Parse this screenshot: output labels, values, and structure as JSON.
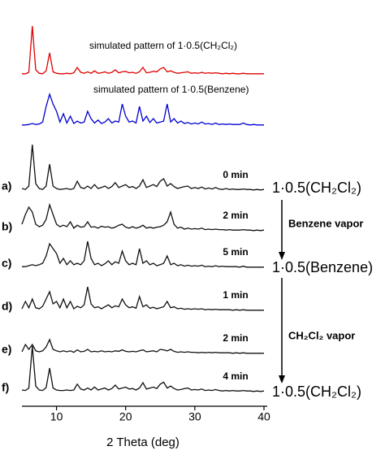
{
  "chart_data": {
    "type": "line",
    "x_label": "2 Theta (deg)",
    "xlim": [
      5,
      40
    ],
    "xticks": [
      10,
      20,
      30,
      40
    ],
    "x": [
      5,
      5.5,
      6,
      6.5,
      7,
      7.5,
      8,
      8.5,
      9,
      9.5,
      10,
      10.5,
      11,
      11.5,
      12,
      12.5,
      13,
      13.5,
      14,
      14.5,
      15,
      15.5,
      16,
      16.5,
      17,
      17.5,
      18,
      18.5,
      19,
      19.5,
      20,
      20.5,
      21,
      21.5,
      22,
      22.5,
      23,
      23.5,
      24,
      24.5,
      25,
      25.5,
      26,
      26.5,
      27,
      27.5,
      28,
      28.5,
      29,
      29.5,
      30,
      30.5,
      31,
      31.5,
      32,
      32.5,
      33,
      33.5,
      34,
      34.5,
      35,
      35.5,
      36,
      36.5,
      37,
      37.5,
      38,
      38.5,
      39,
      39.5,
      40
    ],
    "series": [
      {
        "name": "simulated pattern of 1·0.5(CH₂Cl₂)",
        "color": "#e00000",
        "values": [
          2,
          2,
          5,
          100,
          10,
          3,
          2,
          8,
          45,
          6,
          3,
          2,
          2,
          3,
          2,
          4,
          15,
          5,
          3,
          6,
          3,
          8,
          3,
          4,
          6,
          3,
          5,
          10,
          4,
          6,
          7,
          4,
          5,
          3,
          6,
          15,
          4,
          5,
          7,
          6,
          12,
          15,
          6,
          8,
          5,
          3,
          4,
          5,
          6,
          3,
          4,
          3,
          5,
          3,
          4,
          3,
          4,
          3,
          2,
          3,
          2,
          3,
          2,
          2,
          3,
          2,
          2,
          2,
          2,
          2,
          2
        ]
      },
      {
        "name": "simulated pattern of 1·0.5(Benzene)",
        "color": "#0000d0",
        "values": [
          2,
          2,
          3,
          5,
          3,
          4,
          8,
          40,
          65,
          45,
          30,
          8,
          25,
          6,
          20,
          5,
          10,
          6,
          8,
          30,
          15,
          6,
          12,
          5,
          8,
          15,
          6,
          10,
          8,
          45,
          20,
          8,
          10,
          6,
          40,
          10,
          20,
          7,
          15,
          6,
          8,
          10,
          45,
          8,
          15,
          6,
          10,
          5,
          7,
          4,
          6,
          4,
          8,
          4,
          5,
          3,
          6,
          3,
          4,
          3,
          4,
          3,
          3,
          3,
          6,
          3,
          2,
          3,
          2,
          2,
          2
        ]
      },
      {
        "name": "a)",
        "time": "0 min",
        "time_color": "#1a1aa8",
        "color": "#111111",
        "values": [
          10,
          8,
          15,
          100,
          20,
          10,
          8,
          15,
          60,
          15,
          10,
          8,
          9,
          10,
          8,
          10,
          25,
          12,
          10,
          15,
          10,
          18,
          10,
          12,
          15,
          10,
          14,
          22,
          12,
          15,
          18,
          12,
          14,
          10,
          15,
          28,
          12,
          15,
          18,
          14,
          25,
          30,
          15,
          20,
          14,
          10,
          12,
          14,
          15,
          10,
          12,
          10,
          13,
          9,
          11,
          9,
          12,
          9,
          8,
          10,
          8,
          9,
          8,
          8,
          9,
          8,
          8,
          7,
          8,
          7,
          8
        ]
      },
      {
        "name": "b)",
        "time": "2 min",
        "time_color": "#1a1aa8",
        "color": "#111111",
        "values": [
          20,
          40,
          55,
          45,
          20,
          15,
          18,
          30,
          60,
          40,
          20,
          15,
          18,
          15,
          25,
          12,
          18,
          14,
          15,
          25,
          14,
          15,
          12,
          16,
          14,
          15,
          12,
          14,
          18,
          20,
          14,
          12,
          15,
          12,
          14,
          18,
          12,
          14,
          12,
          14,
          15,
          18,
          25,
          45,
          20,
          12,
          14,
          10,
          12,
          10,
          11,
          10,
          12,
          9,
          10,
          9,
          10,
          9,
          9,
          8,
          9,
          8,
          8,
          8,
          9,
          8,
          8,
          7,
          8,
          7,
          8
        ]
      },
      {
        "name": "c)",
        "time": "5 min",
        "time_color": "#1a1aa8",
        "color": "#111111",
        "values": [
          8,
          8,
          10,
          12,
          10,
          12,
          15,
          30,
          55,
          45,
          35,
          15,
          25,
          12,
          20,
          12,
          15,
          12,
          20,
          60,
          25,
          12,
          15,
          10,
          14,
          20,
          12,
          18,
          15,
          40,
          20,
          12,
          15,
          12,
          45,
          15,
          20,
          12,
          15,
          10,
          12,
          15,
          30,
          12,
          15,
          10,
          12,
          9,
          11,
          9,
          10,
          9,
          11,
          8,
          9,
          8,
          10,
          8,
          9,
          8,
          8,
          8,
          8,
          7,
          9,
          7,
          7,
          7,
          7,
          7,
          7
        ]
      },
      {
        "name": "d)",
        "time": "1 min",
        "time_color": "#d01010",
        "color": "#111111",
        "values": [
          10,
          25,
          12,
          30,
          12,
          10,
          15,
          30,
          45,
          20,
          25,
          12,
          30,
          12,
          25,
          10,
          15,
          12,
          18,
          55,
          20,
          12,
          14,
          10,
          14,
          18,
          12,
          16,
          14,
          30,
          18,
          12,
          14,
          11,
          35,
          14,
          18,
          11,
          13,
          10,
          12,
          14,
          25,
          12,
          14,
          10,
          11,
          9,
          10,
          9,
          10,
          9,
          10,
          8,
          9,
          8,
          9,
          8,
          8,
          8,
          8,
          7,
          8,
          7,
          8,
          7,
          7,
          7,
          7,
          7,
          7
        ]
      },
      {
        "name": "e)",
        "time": "2 min",
        "time_color": "#d01010",
        "color": "#111111",
        "values": [
          10,
          25,
          15,
          25,
          12,
          10,
          12,
          20,
          35,
          15,
          12,
          10,
          12,
          10,
          12,
          9,
          14,
          10,
          11,
          15,
          10,
          11,
          10,
          12,
          10,
          11,
          10,
          12,
          11,
          14,
          11,
          10,
          11,
          10,
          12,
          14,
          10,
          11,
          12,
          10,
          15,
          14,
          12,
          15,
          11,
          9,
          10,
          9,
          10,
          9,
          9,
          8,
          9,
          8,
          9,
          8,
          9,
          8,
          8,
          8,
          8,
          7,
          8,
          7,
          8,
          7,
          7,
          7,
          7,
          7,
          7
        ]
      },
      {
        "name": "f)",
        "time": "4 min",
        "time_color": "#d01010",
        "color": "#111111",
        "values": [
          10,
          9,
          14,
          100,
          18,
          10,
          9,
          15,
          55,
          14,
          10,
          9,
          9,
          10,
          9,
          10,
          22,
          12,
          10,
          14,
          10,
          16,
          10,
          12,
          14,
          10,
          13,
          20,
          12,
          14,
          16,
          12,
          13,
          10,
          14,
          25,
          12,
          14,
          16,
          13,
          22,
          26,
          14,
          18,
          13,
          10,
          11,
          13,
          14,
          10,
          11,
          10,
          12,
          9,
          10,
          9,
          11,
          9,
          8,
          9,
          8,
          9,
          8,
          8,
          9,
          8,
          8,
          7,
          8,
          7,
          8
        ]
      }
    ],
    "annotations": [
      "1·0.5(CH₂Cl₂)",
      "Benzene vapor",
      "1·0.5(Benzene)",
      "CH₂Cl₂ vapor",
      "1·0.5(CH₂Cl₂)"
    ]
  }
}
